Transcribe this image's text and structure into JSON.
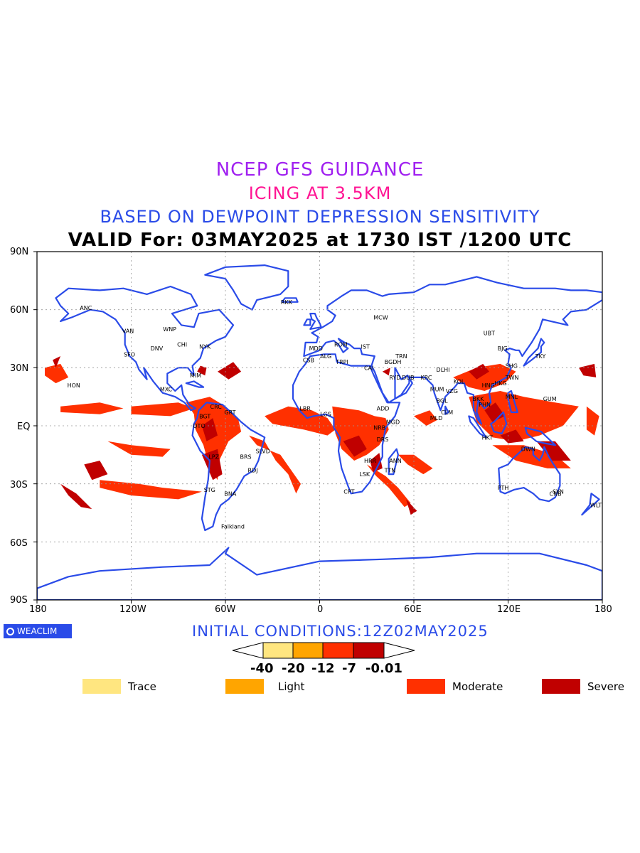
{
  "titles": {
    "line1": "NCEP GFS GUIDANCE",
    "line2": "ICING AT 3.5KM",
    "line3": "BASED ON DEWPOINT DEPRESSION SENSITIVITY",
    "line4": "VALID For: 03MAY2025 at 1730 IST /1200 UTC"
  },
  "axes": {
    "lat_labels": [
      "90N",
      "60N",
      "30N",
      "EQ",
      "30S",
      "60S",
      "90S"
    ],
    "lon_labels": [
      "180",
      "120W",
      "60W",
      "0",
      "60E",
      "120E",
      "180"
    ]
  },
  "logo": {
    "text": "WEACLIM"
  },
  "initial_conditions": "INITIAL CONDITIONS:12Z02MAY2025",
  "colorbar": {
    "ticks": [
      "-40",
      "-20",
      "-12",
      "-7",
      "-0.01"
    ],
    "colors": [
      "#ffe680",
      "#ffa500",
      "#ff3000",
      "#c00000"
    ]
  },
  "legend": [
    {
      "label": "Trace",
      "color": "#ffe680"
    },
    {
      "label": "Light",
      "color": "#ffa500"
    },
    {
      "label": "Moderate",
      "color": "#ff3000"
    },
    {
      "label": "Severe",
      "color": "#c00000"
    }
  ],
  "stations": [
    {
      "name": "ANC",
      "lon": -150,
      "lat": 61
    },
    {
      "name": "HON",
      "lon": -158,
      "lat": 21
    },
    {
      "name": "VAN",
      "lon": -123,
      "lat": 49
    },
    {
      "name": "SFO",
      "lon": -122,
      "lat": 37
    },
    {
      "name": "DNV",
      "lon": -105,
      "lat": 40
    },
    {
      "name": "WNP",
      "lon": -97,
      "lat": 50
    },
    {
      "name": "CHI",
      "lon": -88,
      "lat": 42
    },
    {
      "name": "NYK",
      "lon": -74,
      "lat": 41
    },
    {
      "name": "MIM",
      "lon": -80,
      "lat": 26
    },
    {
      "name": "MXC",
      "lon": -99,
      "lat": 19
    },
    {
      "name": "BGT",
      "lon": -74,
      "lat": 5
    },
    {
      "name": "CRC",
      "lon": -67,
      "lat": 10
    },
    {
      "name": "GRT",
      "lon": -58,
      "lat": 7
    },
    {
      "name": "QTO",
      "lon": -78,
      "lat": 0
    },
    {
      "name": "LPZ",
      "lon": -68,
      "lat": -16
    },
    {
      "name": "BRS",
      "lon": -48,
      "lat": -16
    },
    {
      "name": "SLVD",
      "lon": -38,
      "lat": -13
    },
    {
      "name": "RDJ",
      "lon": -43,
      "lat": -23
    },
    {
      "name": "STG",
      "lon": -71,
      "lat": -33
    },
    {
      "name": "BNA",
      "lon": -58,
      "lat": -35
    },
    {
      "name": "Falkland",
      "lon": -60,
      "lat": -52
    },
    {
      "name": "RKK",
      "lon": -22,
      "lat": 64
    },
    {
      "name": "MDD",
      "lon": -4,
      "lat": 40
    },
    {
      "name": "CSB",
      "lon": -8,
      "lat": 34
    },
    {
      "name": "ALG",
      "lon": 3,
      "lat": 36
    },
    {
      "name": "ROM",
      "lon": 12,
      "lat": 42
    },
    {
      "name": "IST",
      "lon": 29,
      "lat": 41
    },
    {
      "name": "TRPI",
      "lon": 13,
      "lat": 33
    },
    {
      "name": "MCW",
      "lon": 37,
      "lat": 56
    },
    {
      "name": "CAI",
      "lon": 31,
      "lat": 30
    },
    {
      "name": "TRN",
      "lon": 51,
      "lat": 36
    },
    {
      "name": "BGDH",
      "lon": 44,
      "lat": 33
    },
    {
      "name": "RYD",
      "lon": 47,
      "lat": 25
    },
    {
      "name": "DUB",
      "lon": 55,
      "lat": 25
    },
    {
      "name": "KRC",
      "lon": 67,
      "lat": 25
    },
    {
      "name": "DLHI",
      "lon": 77,
      "lat": 29
    },
    {
      "name": "MUM",
      "lon": 73,
      "lat": 19
    },
    {
      "name": "VZG",
      "lon": 83,
      "lat": 18
    },
    {
      "name": "BGL",
      "lon": 77,
      "lat": 13
    },
    {
      "name": "MLD",
      "lon": 73,
      "lat": 4
    },
    {
      "name": "CLM",
      "lon": 80,
      "lat": 7
    },
    {
      "name": "KOL",
      "lon": 88,
      "lat": 23
    },
    {
      "name": "BKK",
      "lon": 100,
      "lat": 14
    },
    {
      "name": "PHN",
      "lon": 104,
      "lat": 11
    },
    {
      "name": "HNG",
      "lon": 106,
      "lat": 21
    },
    {
      "name": "HKG",
      "lon": 114,
      "lat": 22
    },
    {
      "name": "MNL",
      "lon": 121,
      "lat": 15
    },
    {
      "name": "TWN",
      "lon": 121,
      "lat": 25
    },
    {
      "name": "SHG",
      "lon": 121,
      "lat": 31
    },
    {
      "name": "BJG",
      "lon": 116,
      "lat": 40
    },
    {
      "name": "TKY",
      "lon": 140,
      "lat": 36
    },
    {
      "name": "UBT",
      "lon": 107,
      "lat": 48
    },
    {
      "name": "GUM",
      "lon": 145,
      "lat": 14
    },
    {
      "name": "DWN",
      "lon": 131,
      "lat": -12
    },
    {
      "name": "PTH",
      "lon": 116,
      "lat": -32
    },
    {
      "name": "SYN",
      "lon": 151,
      "lat": -34
    },
    {
      "name": "CNB",
      "lon": 149,
      "lat": -35
    },
    {
      "name": "WLT",
      "lon": 175,
      "lat": -41
    },
    {
      "name": "HKT",
      "lon": 106,
      "lat": -6
    },
    {
      "name": "ADD",
      "lon": 39,
      "lat": 9
    },
    {
      "name": "MGD",
      "lon": 45,
      "lat": 2
    },
    {
      "name": "NRB",
      "lon": 37,
      "lat": -1
    },
    {
      "name": "DRS",
      "lon": 39,
      "lat": -7
    },
    {
      "name": "ANN",
      "lon": 47,
      "lat": -18
    },
    {
      "name": "HRR",
      "lon": 31,
      "lat": -18
    },
    {
      "name": "TTN",
      "lon": 44,
      "lat": -23
    },
    {
      "name": "LSK",
      "lon": 28,
      "lat": -25
    },
    {
      "name": "CPT",
      "lon": 18,
      "lat": -34
    },
    {
      "name": "LGS",
      "lon": 3,
      "lat": 6
    },
    {
      "name": "LBR",
      "lon": -10,
      "lat": 9
    }
  ]
}
